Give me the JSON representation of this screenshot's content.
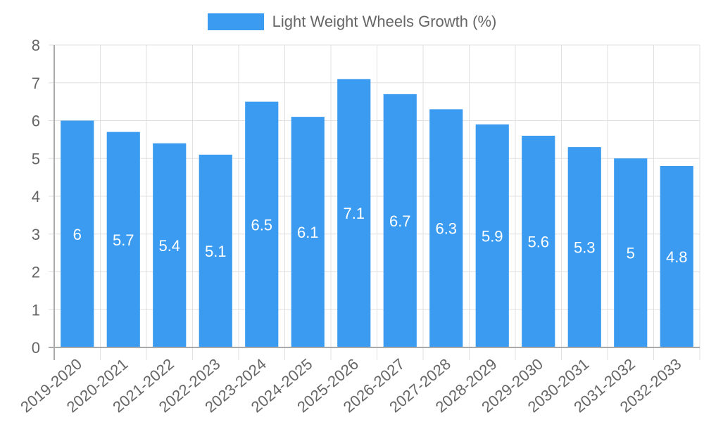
{
  "chart_data": {
    "type": "bar",
    "title": "",
    "xlabel": "",
    "ylabel": "",
    "legend": {
      "position": "top",
      "entries": [
        "Light Weight Wheels Growth (%)"
      ]
    },
    "categories": [
      "2019-2020",
      "2020-2021",
      "2021-2022",
      "2022-2023",
      "2023-2024",
      "2024-2025",
      "2025-2026",
      "2026-2027",
      "2027-2028",
      "2028-2029",
      "2029-2030",
      "2030-2031",
      "2031-2032",
      "2032-2033"
    ],
    "series": [
      {
        "name": "Light Weight Wheels Growth (%)",
        "values": [
          6,
          5.7,
          5.4,
          5.1,
          6.5,
          6.1,
          7.1,
          6.7,
          6.3,
          5.9,
          5.6,
          5.3,
          5,
          4.8
        ],
        "color": "#3a9bf0"
      }
    ],
    "ylim": [
      0,
      8
    ],
    "yticks": [
      0,
      1,
      2,
      3,
      4,
      5,
      6,
      7,
      8
    ],
    "grid": true,
    "data_labels": true
  },
  "legend": {
    "label": "Light Weight Wheels Growth (%)",
    "color": "#3a9bf0"
  }
}
